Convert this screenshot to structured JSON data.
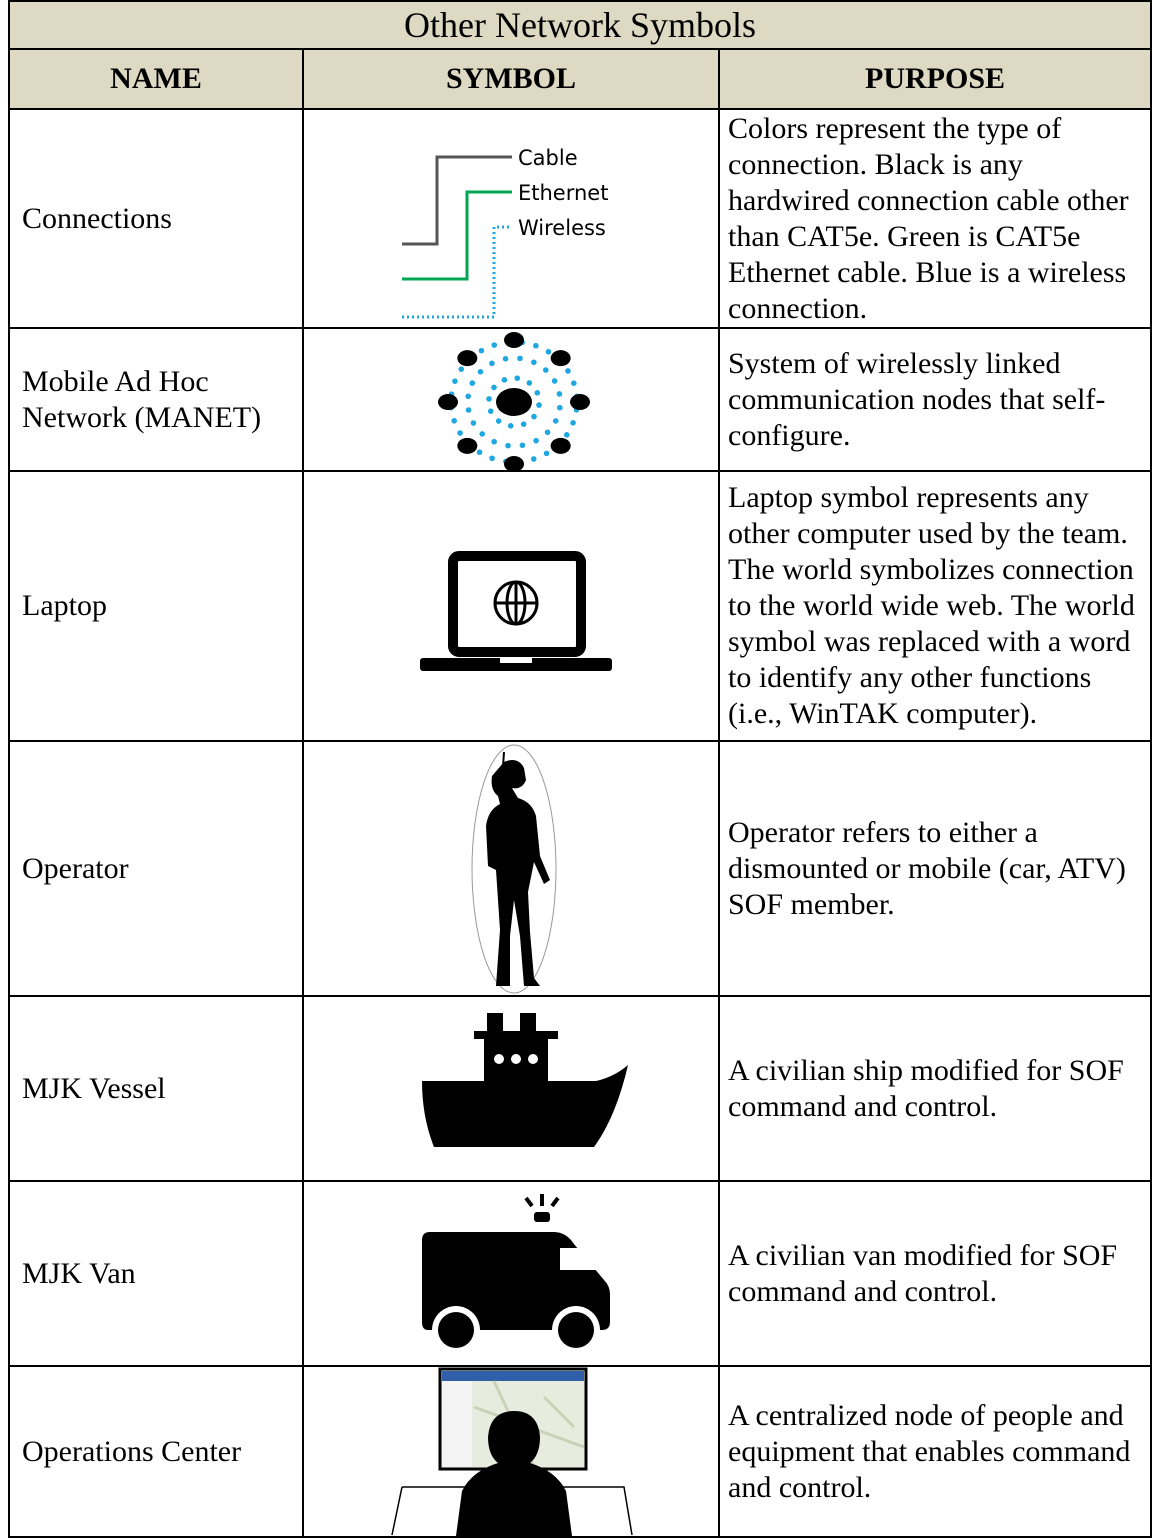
{
  "table": {
    "title": "Other Network Symbols",
    "headers": [
      "NAME",
      "SYMBOL",
      "PURPOSE"
    ],
    "rows": [
      {
        "name": "Connections",
        "symbol_labels": [
          "Cable",
          "Ethernet",
          "Wireless"
        ],
        "purpose": "Colors represent the type of connection. Black is any hardwired connection cable other than CAT5e. Green is CAT5e Ethernet cable. Blue is a wireless connection."
      },
      {
        "name": "Mobile Ad Hoc Network (MANET)",
        "purpose": "System of wirelessly linked communication nodes that self-configure."
      },
      {
        "name": "Laptop",
        "purpose": "Laptop symbol represents any other computer used by the team. The world symbolizes connection to the world wide web. The world symbol was replaced with a word to identify any other functions (i.e., WinTAK computer)."
      },
      {
        "name": "Operator",
        "purpose": "Operator refers to either a dismounted or mobile (car, ATV) SOF member."
      },
      {
        "name": "MJK Vessel",
        "purpose": "A civilian ship modified for SOF command and control."
      },
      {
        "name": "MJK Van",
        "purpose": "A civilian van modified for SOF command and control."
      },
      {
        "name": "Operations Center",
        "purpose": "A centralized node of people and equipment that enables command and control."
      }
    ]
  }
}
